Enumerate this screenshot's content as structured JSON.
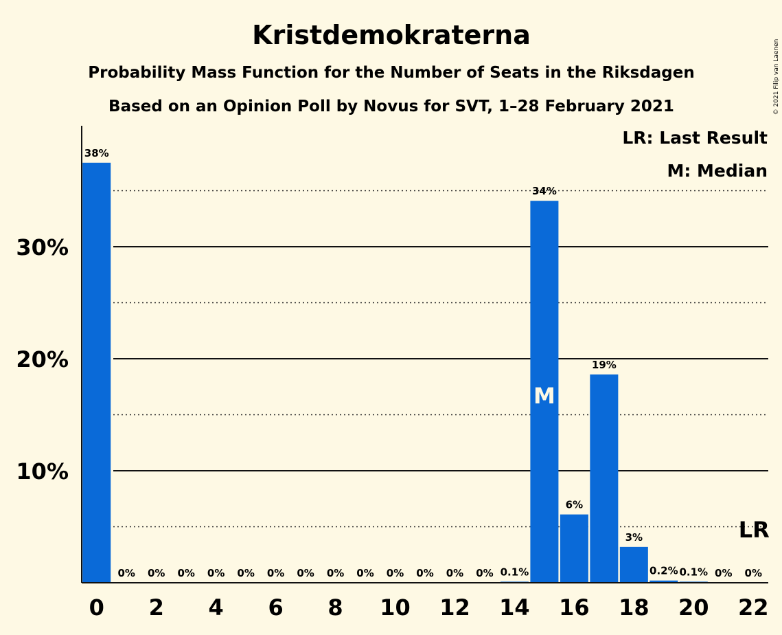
{
  "chart_data": {
    "type": "bar",
    "title": "Kristdemokraterna",
    "subtitle": "Probability Mass Function for the Number of Seats in the Riksdagen",
    "subtitle2": "Based on an Opinion Poll by Novus for SVT, 1–28 February 2021",
    "copyright": "© 2021 Filip van Laenen",
    "x": [
      0,
      1,
      2,
      3,
      4,
      5,
      6,
      7,
      8,
      9,
      10,
      11,
      12,
      13,
      14,
      15,
      16,
      17,
      18,
      19,
      20,
      21,
      22
    ],
    "values": [
      37.5,
      0,
      0,
      0,
      0,
      0,
      0,
      0,
      0,
      0,
      0,
      0,
      0,
      0,
      0.1,
      34.1,
      6.1,
      18.6,
      3.2,
      0.2,
      0.1,
      0,
      0
    ],
    "data_labels": [
      "38%",
      "0%",
      "0%",
      "0%",
      "0%",
      "0%",
      "0%",
      "0%",
      "0%",
      "0%",
      "0%",
      "0%",
      "0%",
      "0%",
      "0.1%",
      "34%",
      "6%",
      "19%",
      "3%",
      "0.2%",
      "0.1%",
      "0%",
      "0%"
    ],
    "x_tick_labels": [
      "0",
      "2",
      "4",
      "6",
      "8",
      "10",
      "12",
      "14",
      "16",
      "18",
      "20",
      "22"
    ],
    "x_ticks": [
      0,
      2,
      4,
      6,
      8,
      10,
      12,
      14,
      16,
      18,
      20,
      22
    ],
    "y_ticks": [
      10,
      20,
      30
    ],
    "y_tick_labels": [
      "10%",
      "20%",
      "30%"
    ],
    "y_dotted_lines": [
      5,
      15,
      25,
      35
    ],
    "ylim": [
      0,
      40.8
    ],
    "bar_color": "#0a6ad8",
    "median": {
      "x": 15,
      "label": "M"
    },
    "last_result": {
      "x": 22,
      "label": "LR"
    },
    "legend": [
      "LR: Last Result",
      "M: Median"
    ],
    "legend_placement": "top-right",
    "grid": true
  }
}
